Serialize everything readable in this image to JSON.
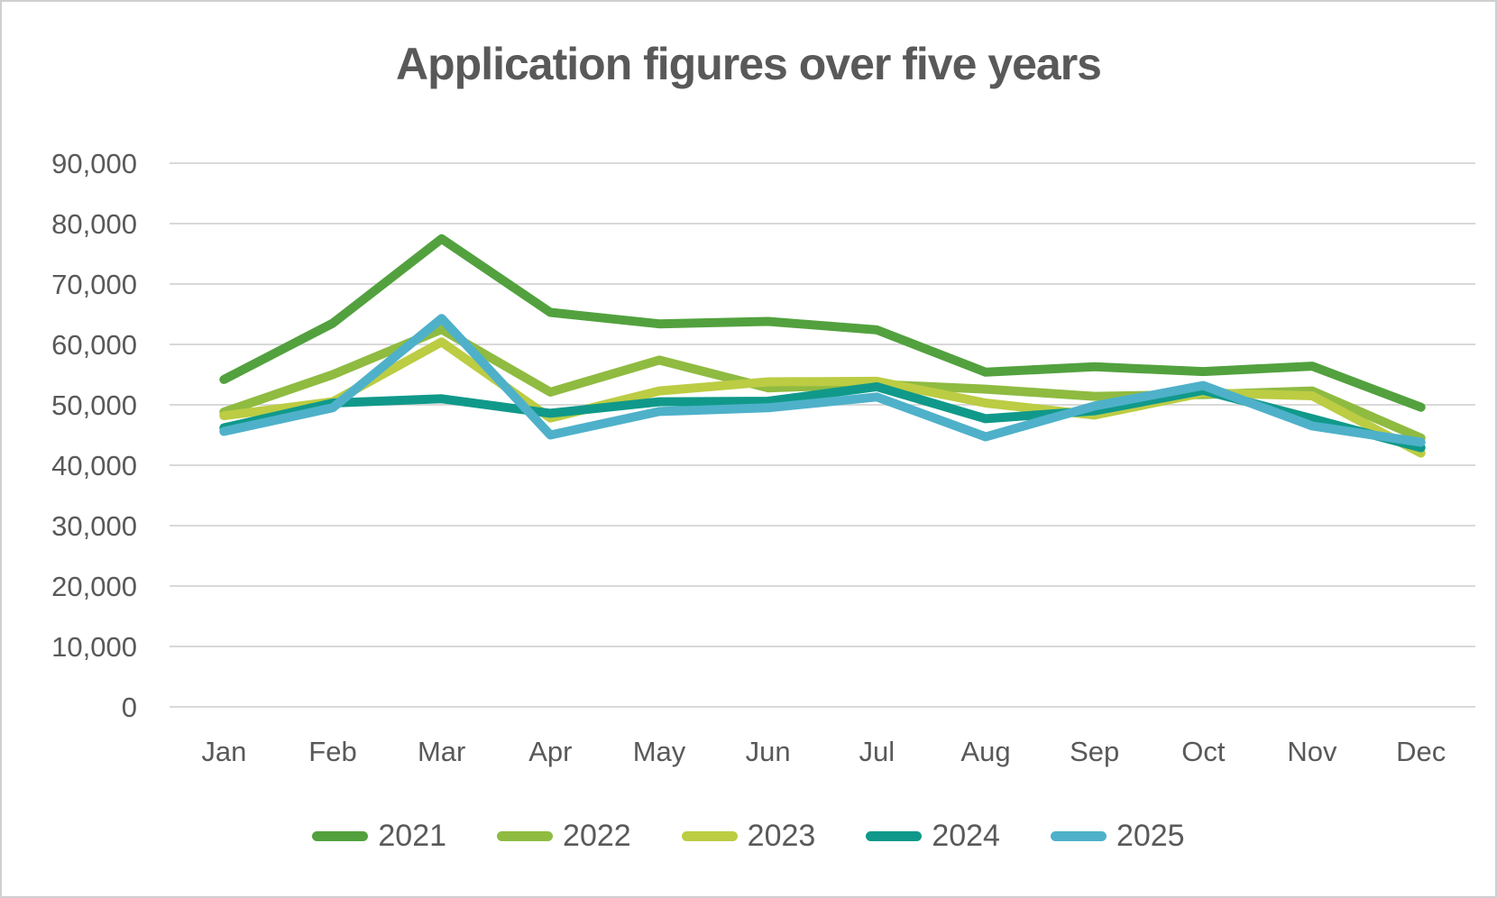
{
  "title": "Application figures over five years",
  "colors": {
    "text": "#595959",
    "gridline": "#D9D9D9",
    "border": "#CFCFCF",
    "background": "#FFFFFF"
  },
  "chart_data": {
    "type": "line",
    "title": "Application figures over five years",
    "categories": [
      "Jan",
      "Feb",
      "Mar",
      "Apr",
      "May",
      "Jun",
      "Jul",
      "Aug",
      "Sep",
      "Oct",
      "Nov",
      "Dec"
    ],
    "series": [
      {
        "name": "2021",
        "color": "#52A13E",
        "values": [
          54200,
          63500,
          77500,
          65300,
          63400,
          63800,
          62400,
          55400,
          56300,
          55500,
          56400,
          49600
        ]
      },
      {
        "name": "2022",
        "color": "#8FBB41",
        "values": [
          48800,
          55000,
          62500,
          52100,
          57400,
          52800,
          53400,
          52600,
          51400,
          51700,
          52300,
          44500
        ]
      },
      {
        "name": "2023",
        "color": "#BCCC43",
        "values": [
          48200,
          50500,
          60400,
          47800,
          52300,
          53800,
          53900,
          50300,
          48300,
          52000,
          51500,
          42000
        ]
      },
      {
        "name": "2024",
        "color": "#10998A",
        "values": [
          46200,
          50300,
          51000,
          48600,
          50500,
          50600,
          53000,
          47700,
          49000,
          52400,
          47700,
          42900
        ]
      },
      {
        "name": "2025",
        "color": "#4EB1C9",
        "values": [
          45600,
          49500,
          64300,
          45000,
          48900,
          49500,
          51300,
          44700,
          49800,
          53200,
          46500,
          43800
        ]
      }
    ],
    "xlabel": "",
    "ylabel": "",
    "ylim": [
      0,
      90000
    ],
    "ytick_interval": 10000,
    "ytick_labels": [
      "0",
      "10,000",
      "20,000",
      "30,000",
      "40,000",
      "50,000",
      "60,000",
      "70,000",
      "80,000",
      "90,000"
    ],
    "grid": "horizontal",
    "legend_position": "bottom"
  }
}
